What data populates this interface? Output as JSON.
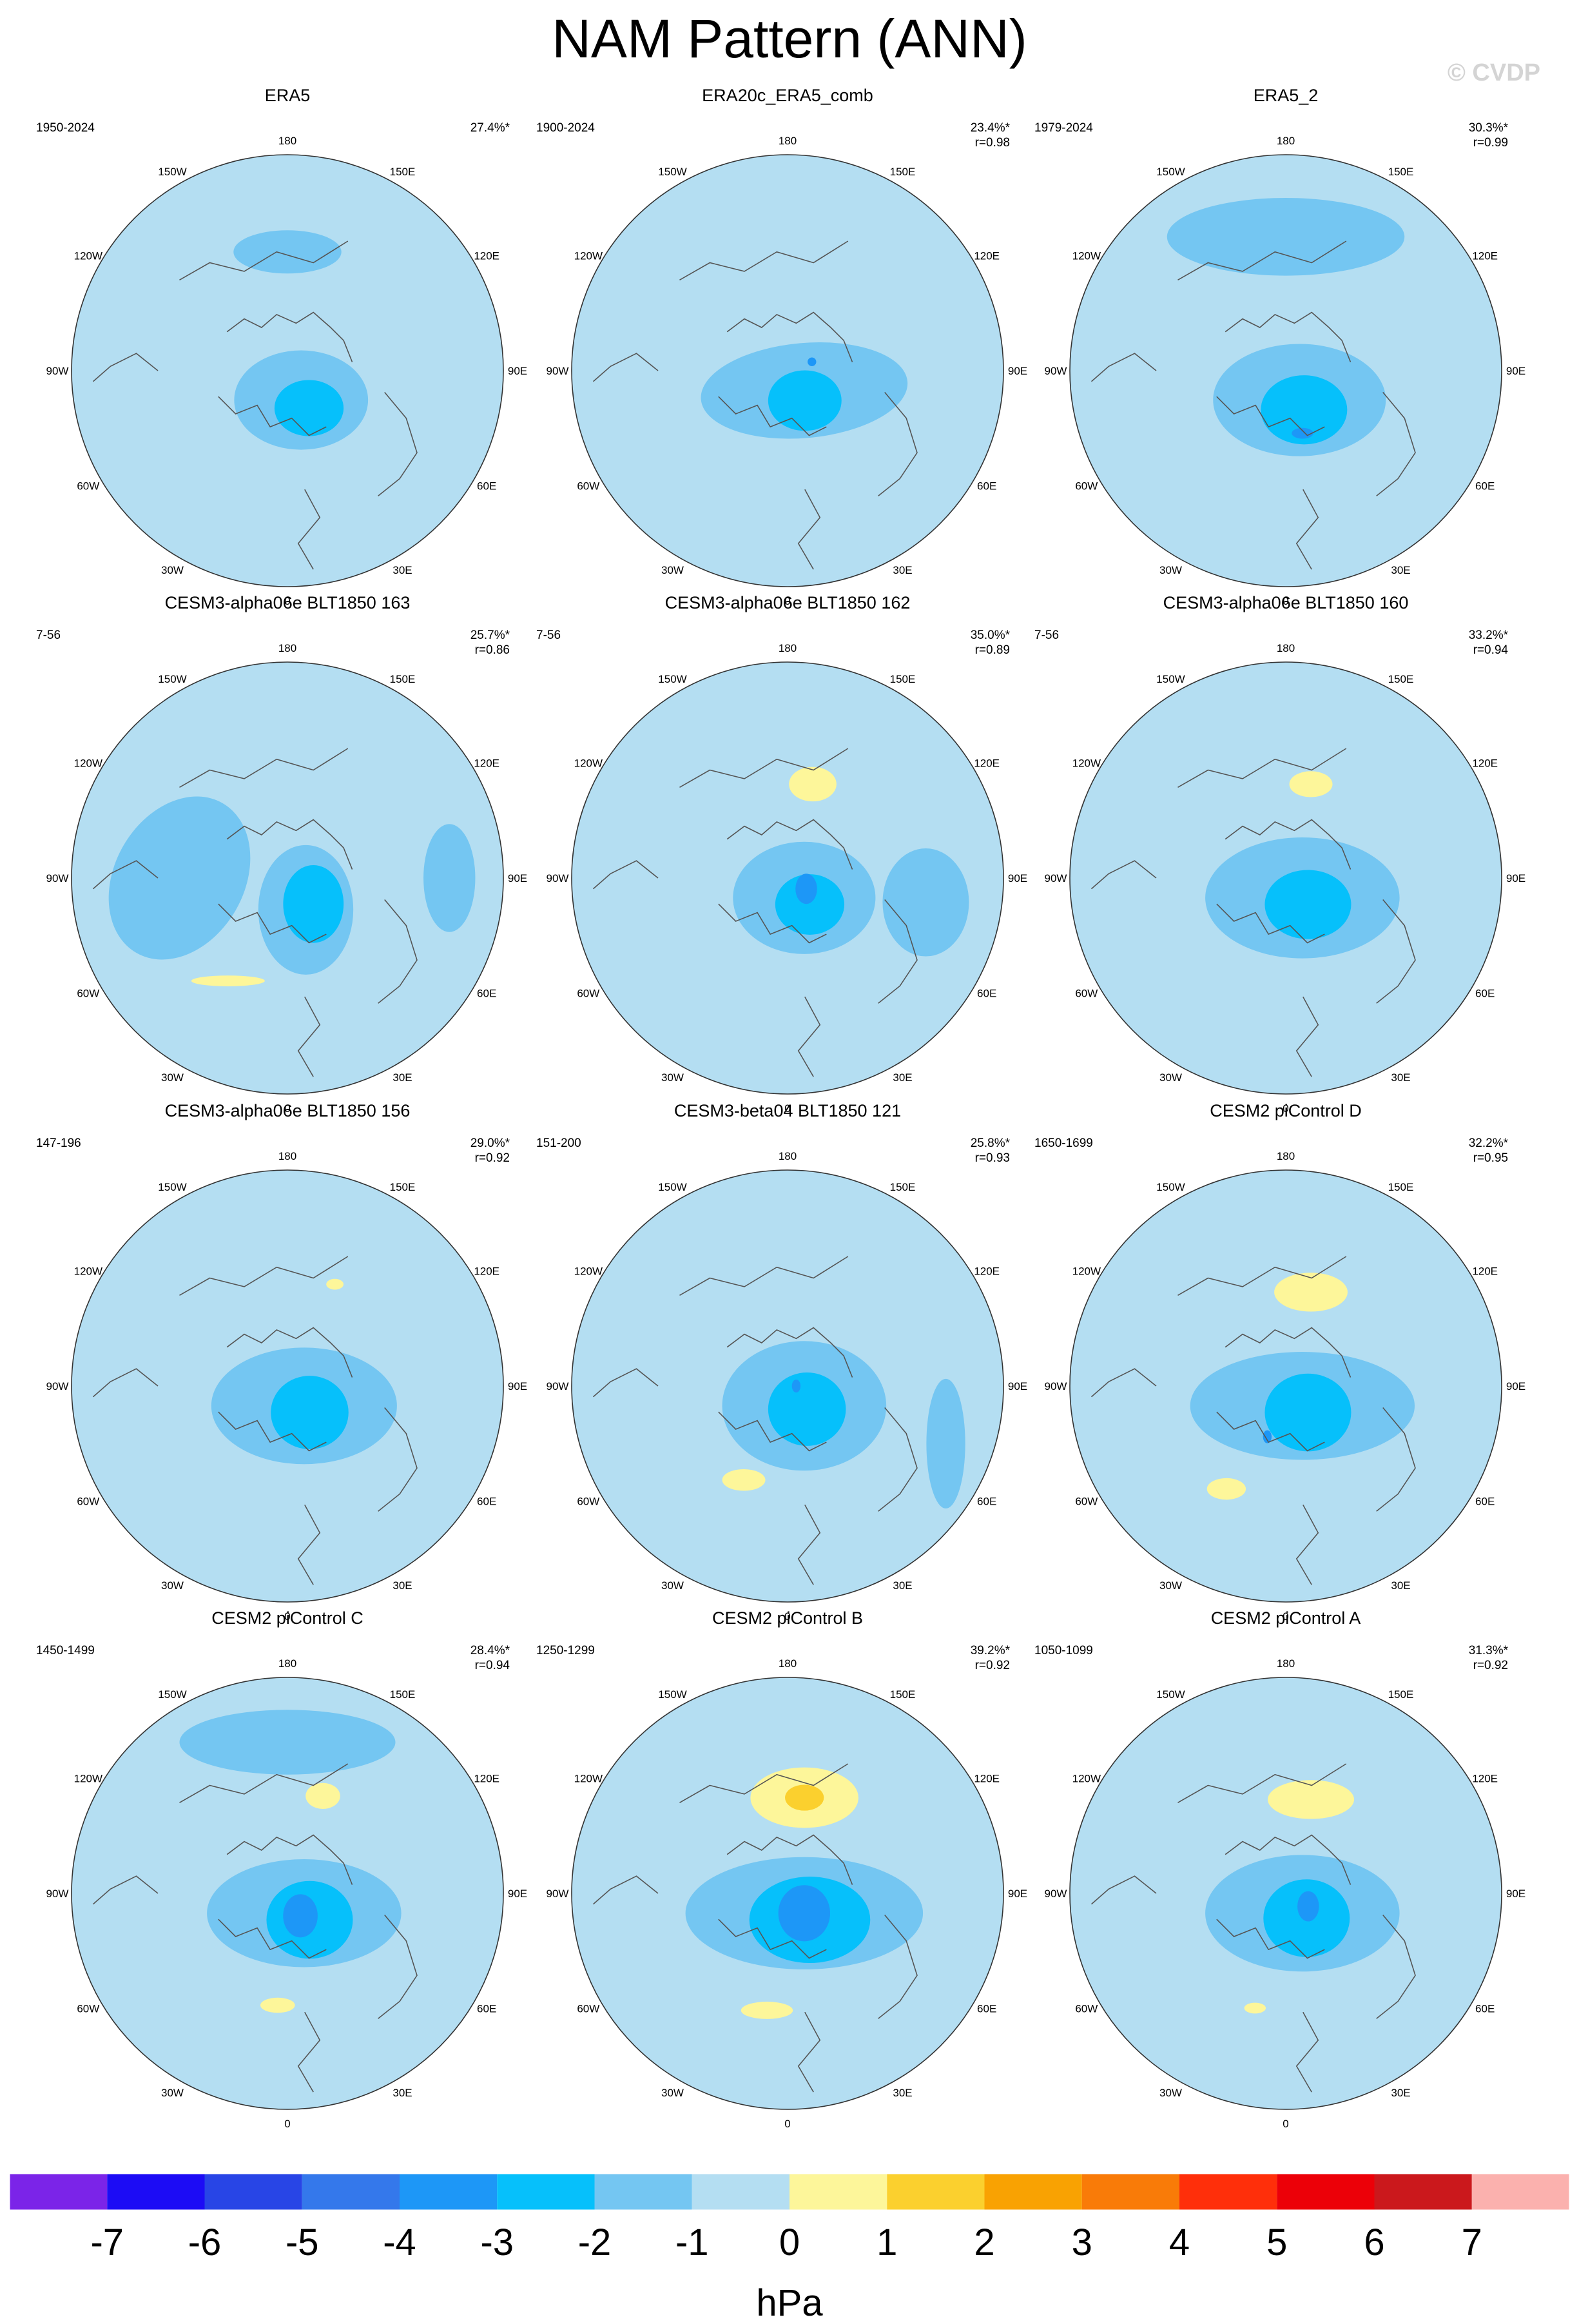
{
  "title": "NAM Pattern (ANN)",
  "watermark": "© CVDP",
  "chart_data": {
    "type": "heatmap",
    "title": "NAM Pattern (ANN)",
    "projection": "polar-stereographic",
    "hemisphere": "north",
    "variable": "sea level pressure regression pattern",
    "units": "hPa",
    "longitude_labels": [
      "180",
      "150E",
      "120E",
      "90E",
      "60E",
      "30E",
      "0",
      "30W",
      "60W",
      "90W",
      "120W",
      "150W"
    ],
    "colorbar": {
      "label": "hPa",
      "ticks": [
        "-7",
        "-6",
        "-5",
        "-4",
        "-3",
        "-2",
        "-1",
        "0",
        "1",
        "2",
        "3",
        "4",
        "5",
        "6",
        "7"
      ],
      "colors": [
        "#7b24e8",
        "#1c0cf5",
        "#2845e6",
        "#3478eb",
        "#1d97f7",
        "#06c0fb",
        "#74c6f2",
        "#b4def2",
        "#fdf69a",
        "#fbd02e",
        "#f9a202",
        "#f97b08",
        "#ff2f0a",
        "#ec0008",
        "#cb181c",
        "#fbb1ae"
      ]
    },
    "panels": [
      {
        "title": "ERA5",
        "years": "1950-2024",
        "pct": "27.4%*",
        "r": "",
        "blobs": [
          {
            "lon": 25,
            "dist": 0.15,
            "ax": 0.31,
            "ay": 0.23,
            "rot": 0,
            "level": -1
          },
          {
            "lon": 180,
            "dist": 0.55,
            "ax": 0.25,
            "ay": 0.1,
            "rot": 0,
            "level": -1
          },
          {
            "lon": 30,
            "dist": 0.2,
            "ax": 0.16,
            "ay": 0.13,
            "rot": 0,
            "level": -2
          }
        ]
      },
      {
        "title": "ERA20c_ERA5_comb",
        "years": "1900-2024",
        "pct": "23.4%*",
        "r": "r=0.98",
        "blobs": [
          {
            "lon": 40,
            "dist": 0.12,
            "ax": 0.48,
            "ay": 0.22,
            "rot": -5,
            "level": -1
          },
          {
            "lon": 30,
            "dist": 0.16,
            "ax": 0.17,
            "ay": 0.14,
            "rot": 0,
            "level": -2
          },
          {
            "lon": 110,
            "dist": 0.12,
            "ax": 0.02,
            "ay": 0.02,
            "rot": 0,
            "level": -3
          }
        ]
      },
      {
        "title": "ERA5_2",
        "years": "1979-2024",
        "pct": "30.3%*",
        "r": "r=0.99",
        "blobs": [
          {
            "lon": 25,
            "dist": 0.15,
            "ax": 0.4,
            "ay": 0.26,
            "rot": 0,
            "level": -1
          },
          {
            "lon": 180,
            "dist": 0.62,
            "ax": 0.55,
            "ay": 0.18,
            "rot": 0,
            "level": -1
          },
          {
            "lon": 25,
            "dist": 0.2,
            "ax": 0.2,
            "ay": 0.16,
            "rot": 0,
            "level": -2
          },
          {
            "lon": 15,
            "dist": 0.3,
            "ax": 0.05,
            "ay": 0.025,
            "rot": 0,
            "level": -3
          }
        ]
      },
      {
        "title": "CESM3-alpha06e BLT1850 163",
        "years": "7-56",
        "pct": "25.7%*",
        "r": "r=0.86",
        "blobs": [
          {
            "lon": 270,
            "dist": 0.5,
            "ax": 0.3,
            "ay": 0.4,
            "rot": 30,
            "level": -1
          },
          {
            "lon": 30,
            "dist": 0.17,
            "ax": 0.22,
            "ay": 0.3,
            "rot": 0,
            "level": -1
          },
          {
            "lon": 90,
            "dist": 0.75,
            "ax": 0.12,
            "ay": 0.25,
            "rot": 0,
            "level": -1
          },
          {
            "lon": 45,
            "dist": 0.17,
            "ax": 0.14,
            "ay": 0.18,
            "rot": 0,
            "level": -2
          },
          {
            "lon": 330,
            "dist": 0.55,
            "ax": 0.17,
            "ay": 0.025,
            "rot": 0,
            "level": 1
          }
        ]
      },
      {
        "title": "CESM3-alpha06e BLT1850 162",
        "years": "7-56",
        "pct": "35.0%*",
        "r": "r=0.89",
        "blobs": [
          {
            "lon": 40,
            "dist": 0.12,
            "ax": 0.33,
            "ay": 0.26,
            "rot": 0,
            "level": -1
          },
          {
            "lon": 80,
            "dist": 0.65,
            "ax": 0.2,
            "ay": 0.25,
            "rot": 0,
            "level": -1
          },
          {
            "lon": 40,
            "dist": 0.16,
            "ax": 0.16,
            "ay": 0.14,
            "rot": 0,
            "level": -2
          },
          {
            "lon": 60,
            "dist": 0.1,
            "ax": 0.05,
            "ay": 0.07,
            "rot": 0,
            "level": -3
          },
          {
            "lon": 165,
            "dist": 0.45,
            "ax": 0.11,
            "ay": 0.08,
            "rot": 0,
            "level": 1
          }
        ]
      },
      {
        "title": "CESM3-alpha06e BLT1850 160",
        "years": "7-56",
        "pct": "33.2%*",
        "r": "r=0.94",
        "blobs": [
          {
            "lon": 40,
            "dist": 0.12,
            "ax": 0.45,
            "ay": 0.28,
            "rot": 0,
            "level": -1
          },
          {
            "lon": 40,
            "dist": 0.16,
            "ax": 0.2,
            "ay": 0.16,
            "rot": 0,
            "level": -2
          },
          {
            "lon": 165,
            "dist": 0.45,
            "ax": 0.1,
            "ay": 0.06,
            "rot": 0,
            "level": 1
          }
        ]
      },
      {
        "title": "CESM3-alpha06e BLT1850 156",
        "years": "147-196",
        "pct": "29.0%*",
        "r": "r=0.92",
        "blobs": [
          {
            "lon": 40,
            "dist": 0.12,
            "ax": 0.43,
            "ay": 0.27,
            "rot": 0,
            "level": -1
          },
          {
            "lon": 40,
            "dist": 0.16,
            "ax": 0.18,
            "ay": 0.17,
            "rot": 0,
            "level": -2
          },
          {
            "lon": 155,
            "dist": 0.52,
            "ax": 0.04,
            "ay": 0.025,
            "rot": 0,
            "level": 1
          }
        ]
      },
      {
        "title": "CESM3-beta04 BLT1850 121",
        "years": "151-200",
        "pct": "25.8%*",
        "r": "r=0.93",
        "blobs": [
          {
            "lon": 40,
            "dist": 0.12,
            "ax": 0.38,
            "ay": 0.3,
            "rot": 0,
            "level": -1
          },
          {
            "lon": 70,
            "dist": 0.78,
            "ax": 0.09,
            "ay": 0.3,
            "rot": 0,
            "level": -1
          },
          {
            "lon": 40,
            "dist": 0.14,
            "ax": 0.18,
            "ay": 0.17,
            "rot": 0,
            "level": -2
          },
          {
            "lon": 90,
            "dist": 0.04,
            "ax": 0.02,
            "ay": 0.03,
            "rot": 0,
            "level": -3
          },
          {
            "lon": 335,
            "dist": 0.48,
            "ax": 0.1,
            "ay": 0.05,
            "rot": 0,
            "level": 1
          }
        ]
      },
      {
        "title": "CESM2 piControl D",
        "years": "1650-1699",
        "pct": "32.2%*",
        "r": "r=0.95",
        "blobs": [
          {
            "lon": 40,
            "dist": 0.12,
            "ax": 0.52,
            "ay": 0.25,
            "rot": 0,
            "level": -1
          },
          {
            "lon": 40,
            "dist": 0.16,
            "ax": 0.2,
            "ay": 0.18,
            "rot": 0,
            "level": -2
          },
          {
            "lon": 340,
            "dist": 0.25,
            "ax": 0.02,
            "ay": 0.03,
            "rot": 0,
            "level": -3
          },
          {
            "lon": 165,
            "dist": 0.45,
            "ax": 0.17,
            "ay": 0.09,
            "rot": 0,
            "level": 1
          },
          {
            "lon": 330,
            "dist": 0.55,
            "ax": 0.09,
            "ay": 0.05,
            "rot": 0,
            "level": 1
          }
        ]
      },
      {
        "title": "CESM2 piControl C",
        "years": "1450-1499",
        "pct": "28.4%*",
        "r": "r=0.94",
        "blobs": [
          {
            "lon": 40,
            "dist": 0.12,
            "ax": 0.45,
            "ay": 0.25,
            "rot": 0,
            "level": -1
          },
          {
            "lon": 180,
            "dist": 0.7,
            "ax": 0.5,
            "ay": 0.15,
            "rot": 0,
            "level": -1
          },
          {
            "lon": 40,
            "dist": 0.16,
            "ax": 0.2,
            "ay": 0.18,
            "rot": 0,
            "level": -2
          },
          {
            "lon": 30,
            "dist": 0.12,
            "ax": 0.08,
            "ay": 0.1,
            "rot": 0,
            "level": -3
          },
          {
            "lon": 160,
            "dist": 0.48,
            "ax": 0.08,
            "ay": 0.06,
            "rot": 0,
            "level": 1
          },
          {
            "lon": 355,
            "dist": 0.52,
            "ax": 0.08,
            "ay": 0.035,
            "rot": 0,
            "level": 1
          }
        ]
      },
      {
        "title": "CESM2 piControl B",
        "years": "1250-1299",
        "pct": "39.2%*",
        "r": "r=0.92",
        "blobs": [
          {
            "lon": 40,
            "dist": 0.12,
            "ax": 0.55,
            "ay": 0.26,
            "rot": 0,
            "level": -1
          },
          {
            "lon": 40,
            "dist": 0.16,
            "ax": 0.28,
            "ay": 0.2,
            "rot": 0,
            "level": -2
          },
          {
            "lon": 40,
            "dist": 0.12,
            "ax": 0.12,
            "ay": 0.13,
            "rot": 0,
            "level": -3
          },
          {
            "lon": 170,
            "dist": 0.45,
            "ax": 0.25,
            "ay": 0.14,
            "rot": 0,
            "level": 1
          },
          {
            "lon": 170,
            "dist": 0.45,
            "ax": 0.09,
            "ay": 0.06,
            "rot": 0,
            "level": 2
          },
          {
            "lon": 350,
            "dist": 0.55,
            "ax": 0.12,
            "ay": 0.04,
            "rot": 0,
            "level": 1
          }
        ]
      },
      {
        "title": "CESM2 piControl A",
        "years": "1050-1099",
        "pct": "31.3%*",
        "r": "r=0.92",
        "blobs": [
          {
            "lon": 40,
            "dist": 0.12,
            "ax": 0.45,
            "ay": 0.27,
            "rot": 0,
            "level": -1
          },
          {
            "lon": 40,
            "dist": 0.15,
            "ax": 0.2,
            "ay": 0.18,
            "rot": 0,
            "level": -2
          },
          {
            "lon": 60,
            "dist": 0.12,
            "ax": 0.05,
            "ay": 0.07,
            "rot": 0,
            "level": -3
          },
          {
            "lon": 165,
            "dist": 0.45,
            "ax": 0.2,
            "ay": 0.09,
            "rot": 0,
            "level": 1
          },
          {
            "lon": 345,
            "dist": 0.55,
            "ax": 0.05,
            "ay": 0.025,
            "rot": 0,
            "level": 1
          }
        ]
      }
    ]
  }
}
